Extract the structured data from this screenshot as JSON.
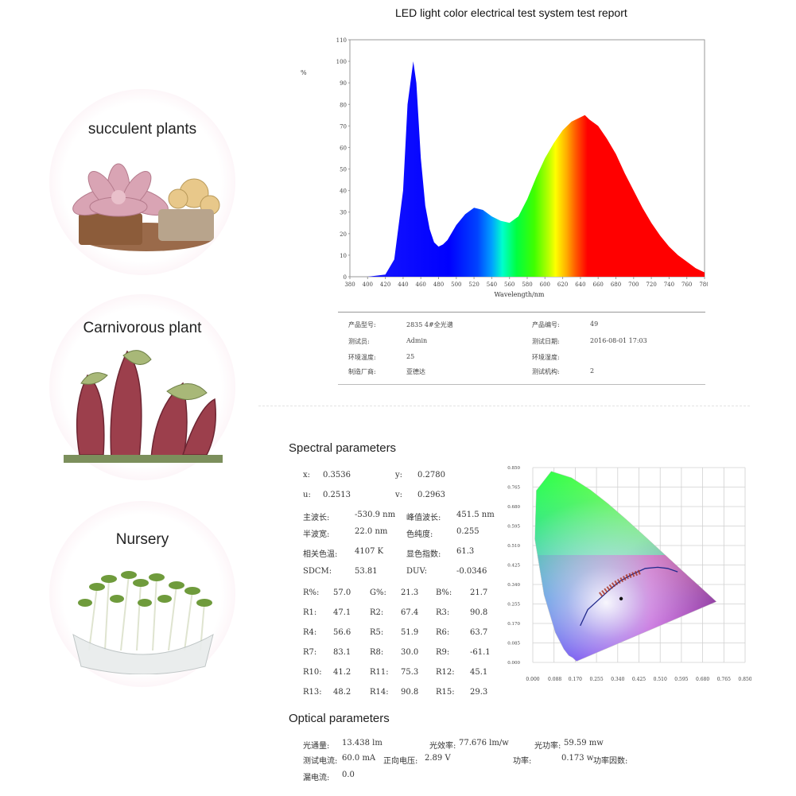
{
  "report_title": "LED light color electrical test system test report",
  "plants": [
    {
      "label": "succulent plants"
    },
    {
      "label": "Carnivorous plant"
    },
    {
      "label": "Nursery"
    }
  ],
  "chart_data": {
    "type": "area",
    "title": "",
    "xlabel": "Wavelength/nm",
    "ylabel": "%",
    "xlim": [
      380,
      780
    ],
    "ylim": [
      0,
      110
    ],
    "x_ticks": [
      "380",
      "400",
      "420",
      "440",
      "460",
      "480",
      "500",
      "520",
      "540",
      "560",
      "580",
      "600",
      "620",
      "640",
      "660",
      "680",
      "700",
      "720",
      "740",
      "760",
      "780"
    ],
    "y_ticks": [
      "0",
      "10",
      "20",
      "30",
      "40",
      "50",
      "60",
      "70",
      "80",
      "90",
      "100",
      "110"
    ],
    "x": [
      380,
      400,
      420,
      430,
      440,
      445,
      451.5,
      455,
      460,
      465,
      470,
      475,
      480,
      485,
      490,
      500,
      510,
      520,
      530,
      540,
      550,
      560,
      570,
      580,
      590,
      600,
      610,
      620,
      630,
      640,
      645,
      650,
      660,
      670,
      680,
      690,
      700,
      710,
      720,
      730,
      740,
      750,
      760,
      770,
      780
    ],
    "y": [
      0,
      0,
      1,
      8,
      40,
      80,
      100,
      90,
      55,
      33,
      22,
      16,
      14,
      15,
      17,
      24,
      29,
      32,
      31,
      28,
      26,
      25,
      28,
      36,
      46,
      55,
      62,
      68,
      72,
      74,
      75,
      73,
      70,
      64,
      57,
      48,
      40,
      32,
      25,
      19,
      14,
      10,
      7,
      4,
      2
    ]
  },
  "product_info": {
    "left": [
      {
        "label": "产品型号:",
        "value": "2835 4#全光谱"
      },
      {
        "label": "测试员:",
        "value": "Admin"
      },
      {
        "label": "环境温度:",
        "value": "25"
      },
      {
        "label": "制造厂商:",
        "value": "亚德达"
      }
    ],
    "right": [
      {
        "label": "产品编号:",
        "value": "49"
      },
      {
        "label": "测试日期:",
        "value": "2016-08-01 17:03"
      },
      {
        "label": "环境湿度:",
        "value": ""
      },
      {
        "label": "测试机构:",
        "value": "2"
      }
    ]
  },
  "spectral": {
    "title": "Spectral parameters",
    "x_label": "x:",
    "x_value": "0.3536",
    "y_label": "y:",
    "y_value": "0.2780",
    "u_label": "u:",
    "u_value": "0.2513",
    "v_label": "v:",
    "v_value": "0.2963",
    "rows": [
      {
        "l1": "主波长:",
        "v1": "-530.9 nm",
        "l2": "峰值波长:",
        "v2": "451.5 nm"
      },
      {
        "l1": "半波宽:",
        "v1": "22.0 nm",
        "l2": "色纯度:",
        "v2": "0.255"
      },
      {
        "l1": "相关色温:",
        "v1": "4107 K",
        "l2": "显色指数:",
        "v2": "61.3"
      },
      {
        "l1": "SDCM:",
        "v1": "53.81",
        "l2": "DUV:",
        "v2": "-0.0346"
      }
    ],
    "ratio_row": [
      {
        "label": "R%:",
        "value": "57.0"
      },
      {
        "label": "G%:",
        "value": "21.3"
      },
      {
        "label": "B%:",
        "value": "21.7"
      }
    ],
    "r_rows": [
      [
        {
          "label": "R1:",
          "value": "47.1"
        },
        {
          "label": "R2:",
          "value": "67.4"
        },
        {
          "label": "R3:",
          "value": "90.8"
        }
      ],
      [
        {
          "label": "R4:",
          "value": "56.6"
        },
        {
          "label": "R5:",
          "value": "51.9"
        },
        {
          "label": "R6:",
          "value": "63.7"
        }
      ],
      [
        {
          "label": "R7:",
          "value": "83.1"
        },
        {
          "label": "R8:",
          "value": "30.0"
        },
        {
          "label": "R9:",
          "value": "-61.1"
        }
      ],
      [
        {
          "label": "R10:",
          "value": "41.2"
        },
        {
          "label": "R11:",
          "value": "75.3"
        },
        {
          "label": "R12:",
          "value": "45.1"
        }
      ],
      [
        {
          "label": "R13:",
          "value": "48.2"
        },
        {
          "label": "R14:",
          "value": "90.8"
        },
        {
          "label": "R15:",
          "value": "29.3"
        }
      ]
    ]
  },
  "cie": {
    "x_ticks": [
      "0.000",
      "0.088",
      "0.170",
      "0.255",
      "0.340",
      "0.425",
      "0.510",
      "0.595",
      "0.680",
      "0.765",
      "0.850"
    ],
    "y_ticks": [
      "0.000",
      "0.085",
      "0.170",
      "0.255",
      "0.340",
      "0.425",
      "0.510",
      "0.595",
      "0.680",
      "0.765",
      "0.850"
    ],
    "point": [
      0.3536,
      0.278
    ]
  },
  "optical": {
    "title": "Optical parameters",
    "items": [
      {
        "label": "光通量:",
        "value": "13.438 lm"
      },
      {
        "label": "光效率:",
        "value": "77.676 lm/w"
      },
      {
        "label": "光功率:",
        "value": "59.59 mw"
      },
      {
        "label": "测试电流:",
        "value": "60.0 mA"
      },
      {
        "label": "正向电压:",
        "value": "2.89 V"
      },
      {
        "label": "功率:",
        "value": "0.173 w"
      },
      {
        "label": "功率因数:",
        "value": ""
      },
      {
        "label": "漏电流:",
        "value": "0.0"
      }
    ]
  },
  "colors": {
    "accent": "#e07aa0",
    "grid": "#bbbbbb",
    "text": "#333333"
  }
}
